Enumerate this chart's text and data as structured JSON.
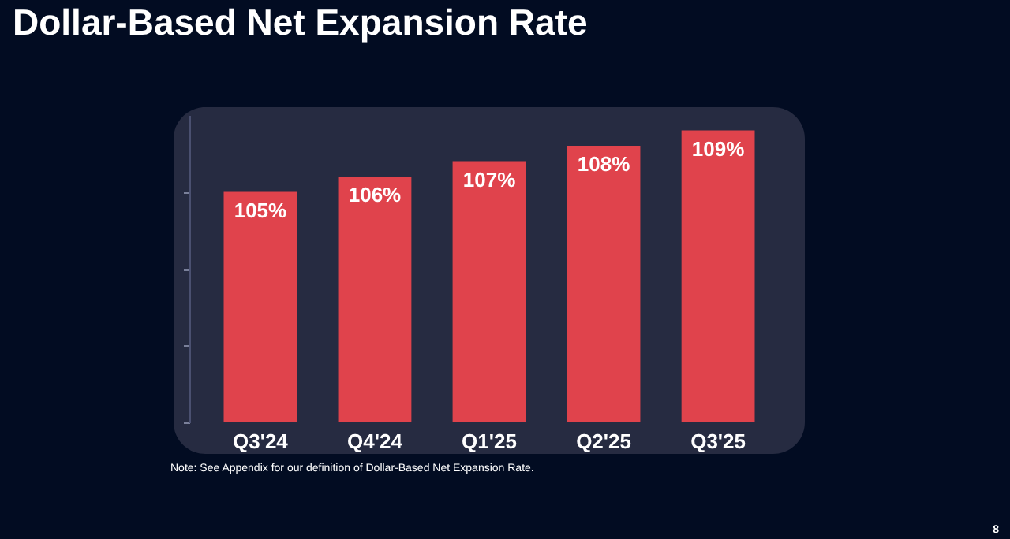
{
  "chart_data": {
    "type": "bar",
    "title": "Dollar-Based Net Expansion Rate",
    "categories": [
      "Q3'24",
      "Q4'24",
      "Q1'25",
      "Q2'25",
      "Q3'25"
    ],
    "values": [
      105,
      106,
      107,
      108,
      109
    ],
    "value_labels": [
      "105%",
      "106%",
      "107%",
      "108%",
      "109%"
    ],
    "color": "#e0434c",
    "ylim": [
      90,
      110
    ],
    "yticks": [
      {
        "value": 90,
        "label": null
      },
      {
        "value": 95,
        "label": null
      },
      {
        "value": 100,
        "label": null
      },
      {
        "value": 105,
        "label": null
      }
    ],
    "annotations": [
      "Note: See Appendix for our definition of Dollar-Based Net Expansion Rate.",
      "8"
    ]
  }
}
